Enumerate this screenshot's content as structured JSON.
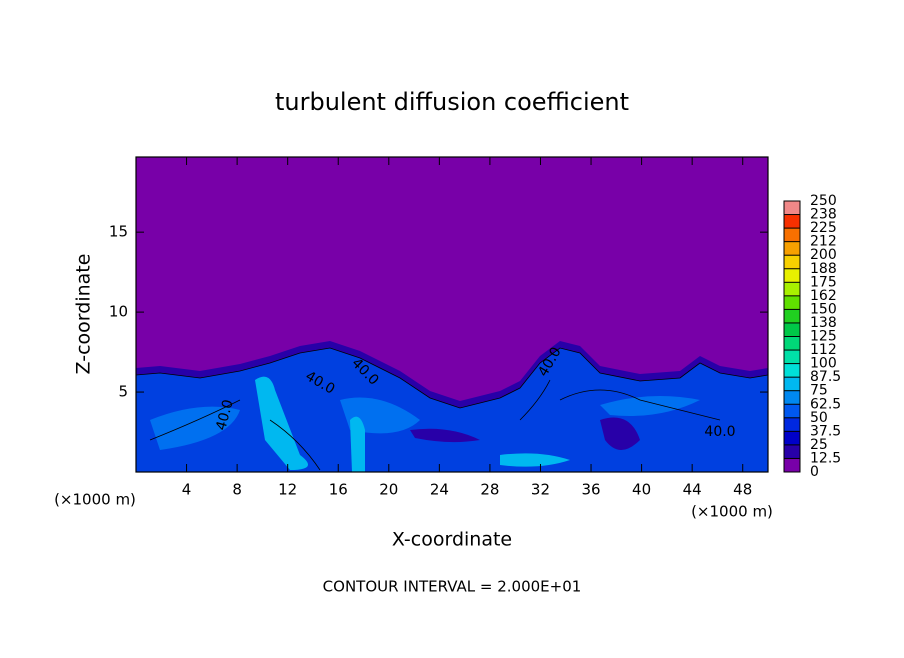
{
  "chart_data": {
    "type": "contour",
    "title": "turbulent diffusion coefficient",
    "x_label": "X-coordinate",
    "y_label": "Z-coordinate",
    "x_unit_left": "(×1000 m)",
    "x_unit_right": "(×1000 m)",
    "footnote": "CONTOUR INTERVAL = 2.000E+01",
    "contour_labels": [
      "40.0",
      "40.0",
      "40.0",
      "40.0",
      "40.0"
    ],
    "xlim": [
      0,
      50
    ],
    "xticks": [
      4,
      8,
      12,
      16,
      20,
      24,
      28,
      32,
      36,
      40,
      44,
      48
    ],
    "ylim": [
      0,
      19.7
    ],
    "yticks": [
      5,
      10,
      15
    ],
    "colorbar": {
      "clim": [
        0,
        250
      ],
      "ticks": [
        0,
        12.5,
        25,
        37.5,
        50,
        62.5,
        75,
        87.5,
        100,
        {
          "value": 112.5,
          "label": "112"
        },
        125,
        {
          "value": 137.5,
          "label": "138"
        },
        150,
        {
          "value": 162.5,
          "label": "162"
        },
        175,
        {
          "value": 187.5,
          "label": "188"
        },
        200,
        {
          "value": 212.5,
          "label": "212"
        },
        225,
        {
          "value": 237.5,
          "label": "238"
        },
        250
      ],
      "colors": [
        "#7800a8",
        "#2800a8",
        "#0000c8",
        "#0028e0",
        "#0058f0",
        "#0088f0",
        "#00b8f0",
        "#00e0d8",
        "#00e0a8",
        "#00d878",
        "#00c848",
        "#20d020",
        "#60e000",
        "#a8f000",
        "#e8f000",
        "#f8d000",
        "#f8a000",
        "#f87000",
        "#f83000",
        "#f08888"
      ]
    }
  }
}
